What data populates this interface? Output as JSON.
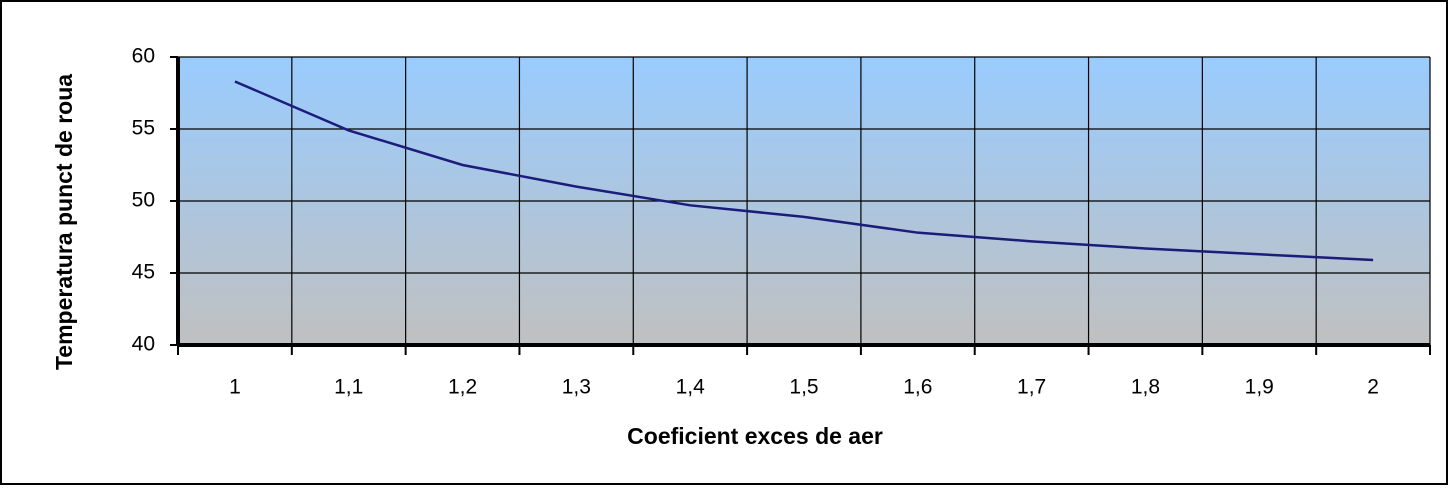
{
  "chart_data": {
    "type": "line",
    "xlabel": "Coeficient exces de aer",
    "ylabel": "Temperatura punct de roua",
    "categories": [
      "1",
      "1,1",
      "1,2",
      "1,3",
      "1,4",
      "1,5",
      "1,6",
      "1,7",
      "1,8",
      "1,9",
      "2"
    ],
    "series": [
      {
        "name": "Temperatura punct de roua",
        "color": "#1c1c7a",
        "values": [
          58.3,
          54.9,
          52.5,
          51.0,
          49.7,
          48.9,
          47.8,
          47.2,
          46.7,
          46.3,
          45.9
        ]
      }
    ],
    "ylim": [
      40,
      60
    ],
    "yticks": [
      40,
      45,
      50,
      55,
      60
    ],
    "grid": true
  }
}
